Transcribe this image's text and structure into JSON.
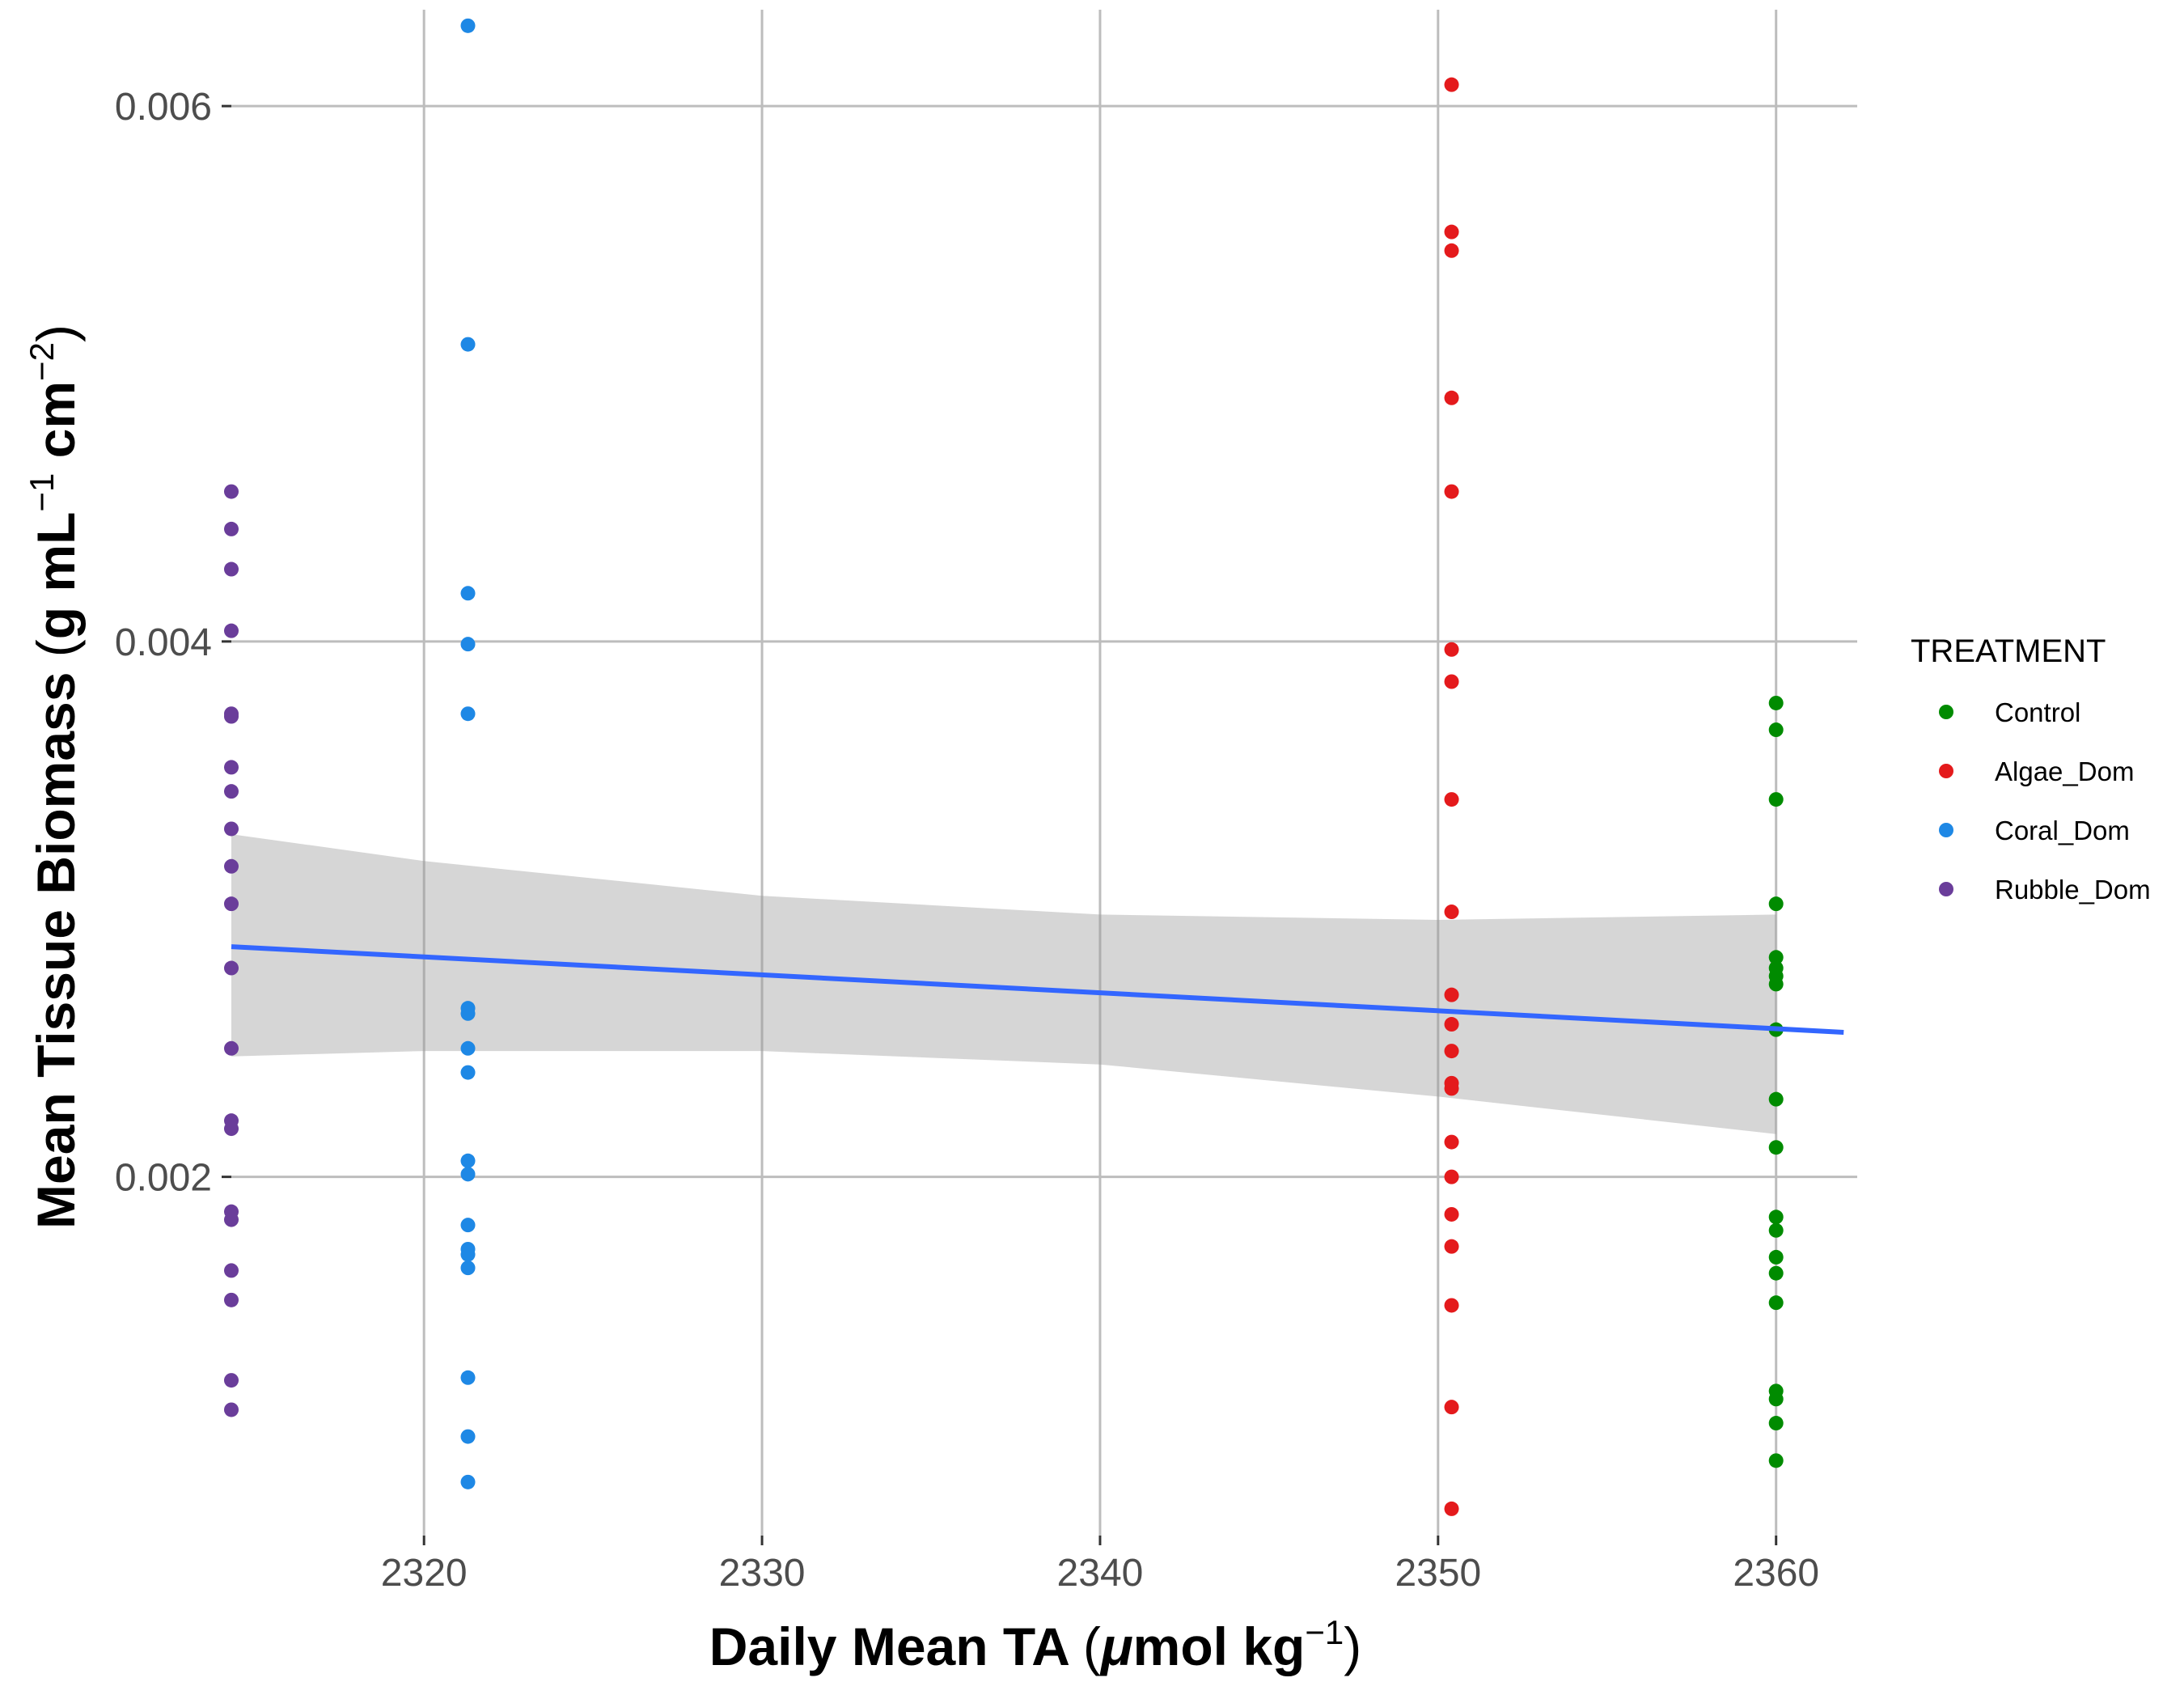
{
  "chart_data": {
    "type": "scatter",
    "xlabel_parts": [
      "Daily Mean TA ",
      "(",
      "μ",
      "mol kg",
      "−1",
      ")"
    ],
    "ylabel_parts": [
      "Mean Tissue Biomass ",
      "(",
      "g mL",
      "−1",
      " cm",
      "−2",
      ")"
    ],
    "xlim": [
      2314.3,
      2362.4
    ],
    "ylim": [
      0.00066,
      0.00636
    ],
    "x_ticks": [
      2320,
      2330,
      2340,
      2350,
      2360
    ],
    "x_tick_labels": [
      "2320",
      "2330",
      "2340",
      "2350",
      "2360"
    ],
    "y_ticks": [
      0.002,
      0.004,
      0.006
    ],
    "y_tick_labels": [
      "0.002",
      "0.004",
      "0.006"
    ],
    "grid": true,
    "legend": {
      "title": "TREATMENT",
      "position": "right"
    },
    "series": [
      {
        "name": "Control",
        "color": "#008B00",
        "x": 2360,
        "values": [
          0.00377,
          0.00367,
          0.00341,
          0.00302,
          0.00282,
          0.00278,
          0.00275,
          0.00272,
          0.00255,
          0.00229,
          0.00211,
          0.00185,
          0.0018,
          0.0017,
          0.00164,
          0.00153,
          0.0012,
          0.00117,
          0.00108,
          0.00094
        ]
      },
      {
        "name": "Algae_Dom",
        "color": "#E41A1C",
        "x": 2350.4,
        "values": [
          0.00608,
          0.00553,
          0.00546,
          0.00491,
          0.00456,
          0.00397,
          0.00385,
          0.00341,
          0.00299,
          0.00268,
          0.00257,
          0.00247,
          0.00235,
          0.00233,
          0.00213,
          0.002,
          0.00186,
          0.00174,
          0.00152,
          0.00114,
          0.00076
        ]
      },
      {
        "name": "Coral_Dom",
        "color": "#1E88E5",
        "x": 2321.3,
        "values": [
          0.0063,
          0.00511,
          0.00418,
          0.00399,
          0.00373,
          0.00263,
          0.00261,
          0.00248,
          0.00239,
          0.00206,
          0.00201,
          0.00182,
          0.00173,
          0.00171,
          0.00166,
          0.00125,
          0.00103,
          0.00086
        ]
      },
      {
        "name": "Rubble_Dom",
        "color": "#6A3D9A",
        "x": 2314.3,
        "values": [
          0.00456,
          0.00442,
          0.00427,
          0.00404,
          0.00373,
          0.00372,
          0.00353,
          0.00344,
          0.0033,
          0.00316,
          0.00302,
          0.00278,
          0.00248,
          0.00221,
          0.00218,
          0.00187,
          0.00184,
          0.00165,
          0.00154,
          0.00124,
          0.00113
        ]
      }
    ],
    "trend_line": {
      "color": "#3366FF",
      "band_color": "#999999",
      "x": [
        2314.3,
        2362
      ],
      "fit": [
        0.00286,
        0.00254
      ],
      "band_x": [
        2314.3,
        2320,
        2330,
        2340,
        2350,
        2360
      ],
      "band_upper": [
        0.00328,
        0.00318,
        0.00305,
        0.00298,
        0.00296,
        0.00298
      ],
      "band_lower": [
        0.00245,
        0.00247,
        0.00247,
        0.00242,
        0.0023,
        0.00216
      ]
    }
  }
}
